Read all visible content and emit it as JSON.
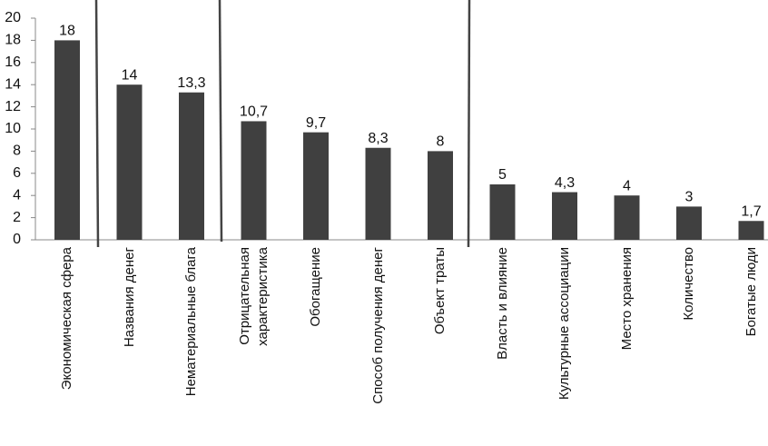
{
  "chart_data": {
    "type": "bar",
    "categories": [
      "Экономическая сфера",
      "Названия денег",
      "Нематериальные блага",
      "Отрицательная\nхарактеристика",
      "Обогащение",
      "Способ получения денег",
      "Объект траты",
      "Власть и влияние",
      "Культурные ассоциации",
      "Место хранения",
      "Количество",
      "Богатые люди"
    ],
    "values": [
      18,
      14,
      13.3,
      10.7,
      9.7,
      8.3,
      8,
      5,
      4.3,
      4,
      3,
      1.7
    ],
    "value_labels": [
      "18",
      "14",
      "13,3",
      "10,7",
      "9,7",
      "8,3",
      "8",
      "5",
      "4,3",
      "4",
      "3",
      "1,7"
    ],
    "color": "#404040",
    "ylim": [
      0,
      20
    ],
    "yticks": [
      0,
      2,
      4,
      6,
      8,
      10,
      12,
      14,
      16,
      18,
      20
    ],
    "grid": false
  }
}
